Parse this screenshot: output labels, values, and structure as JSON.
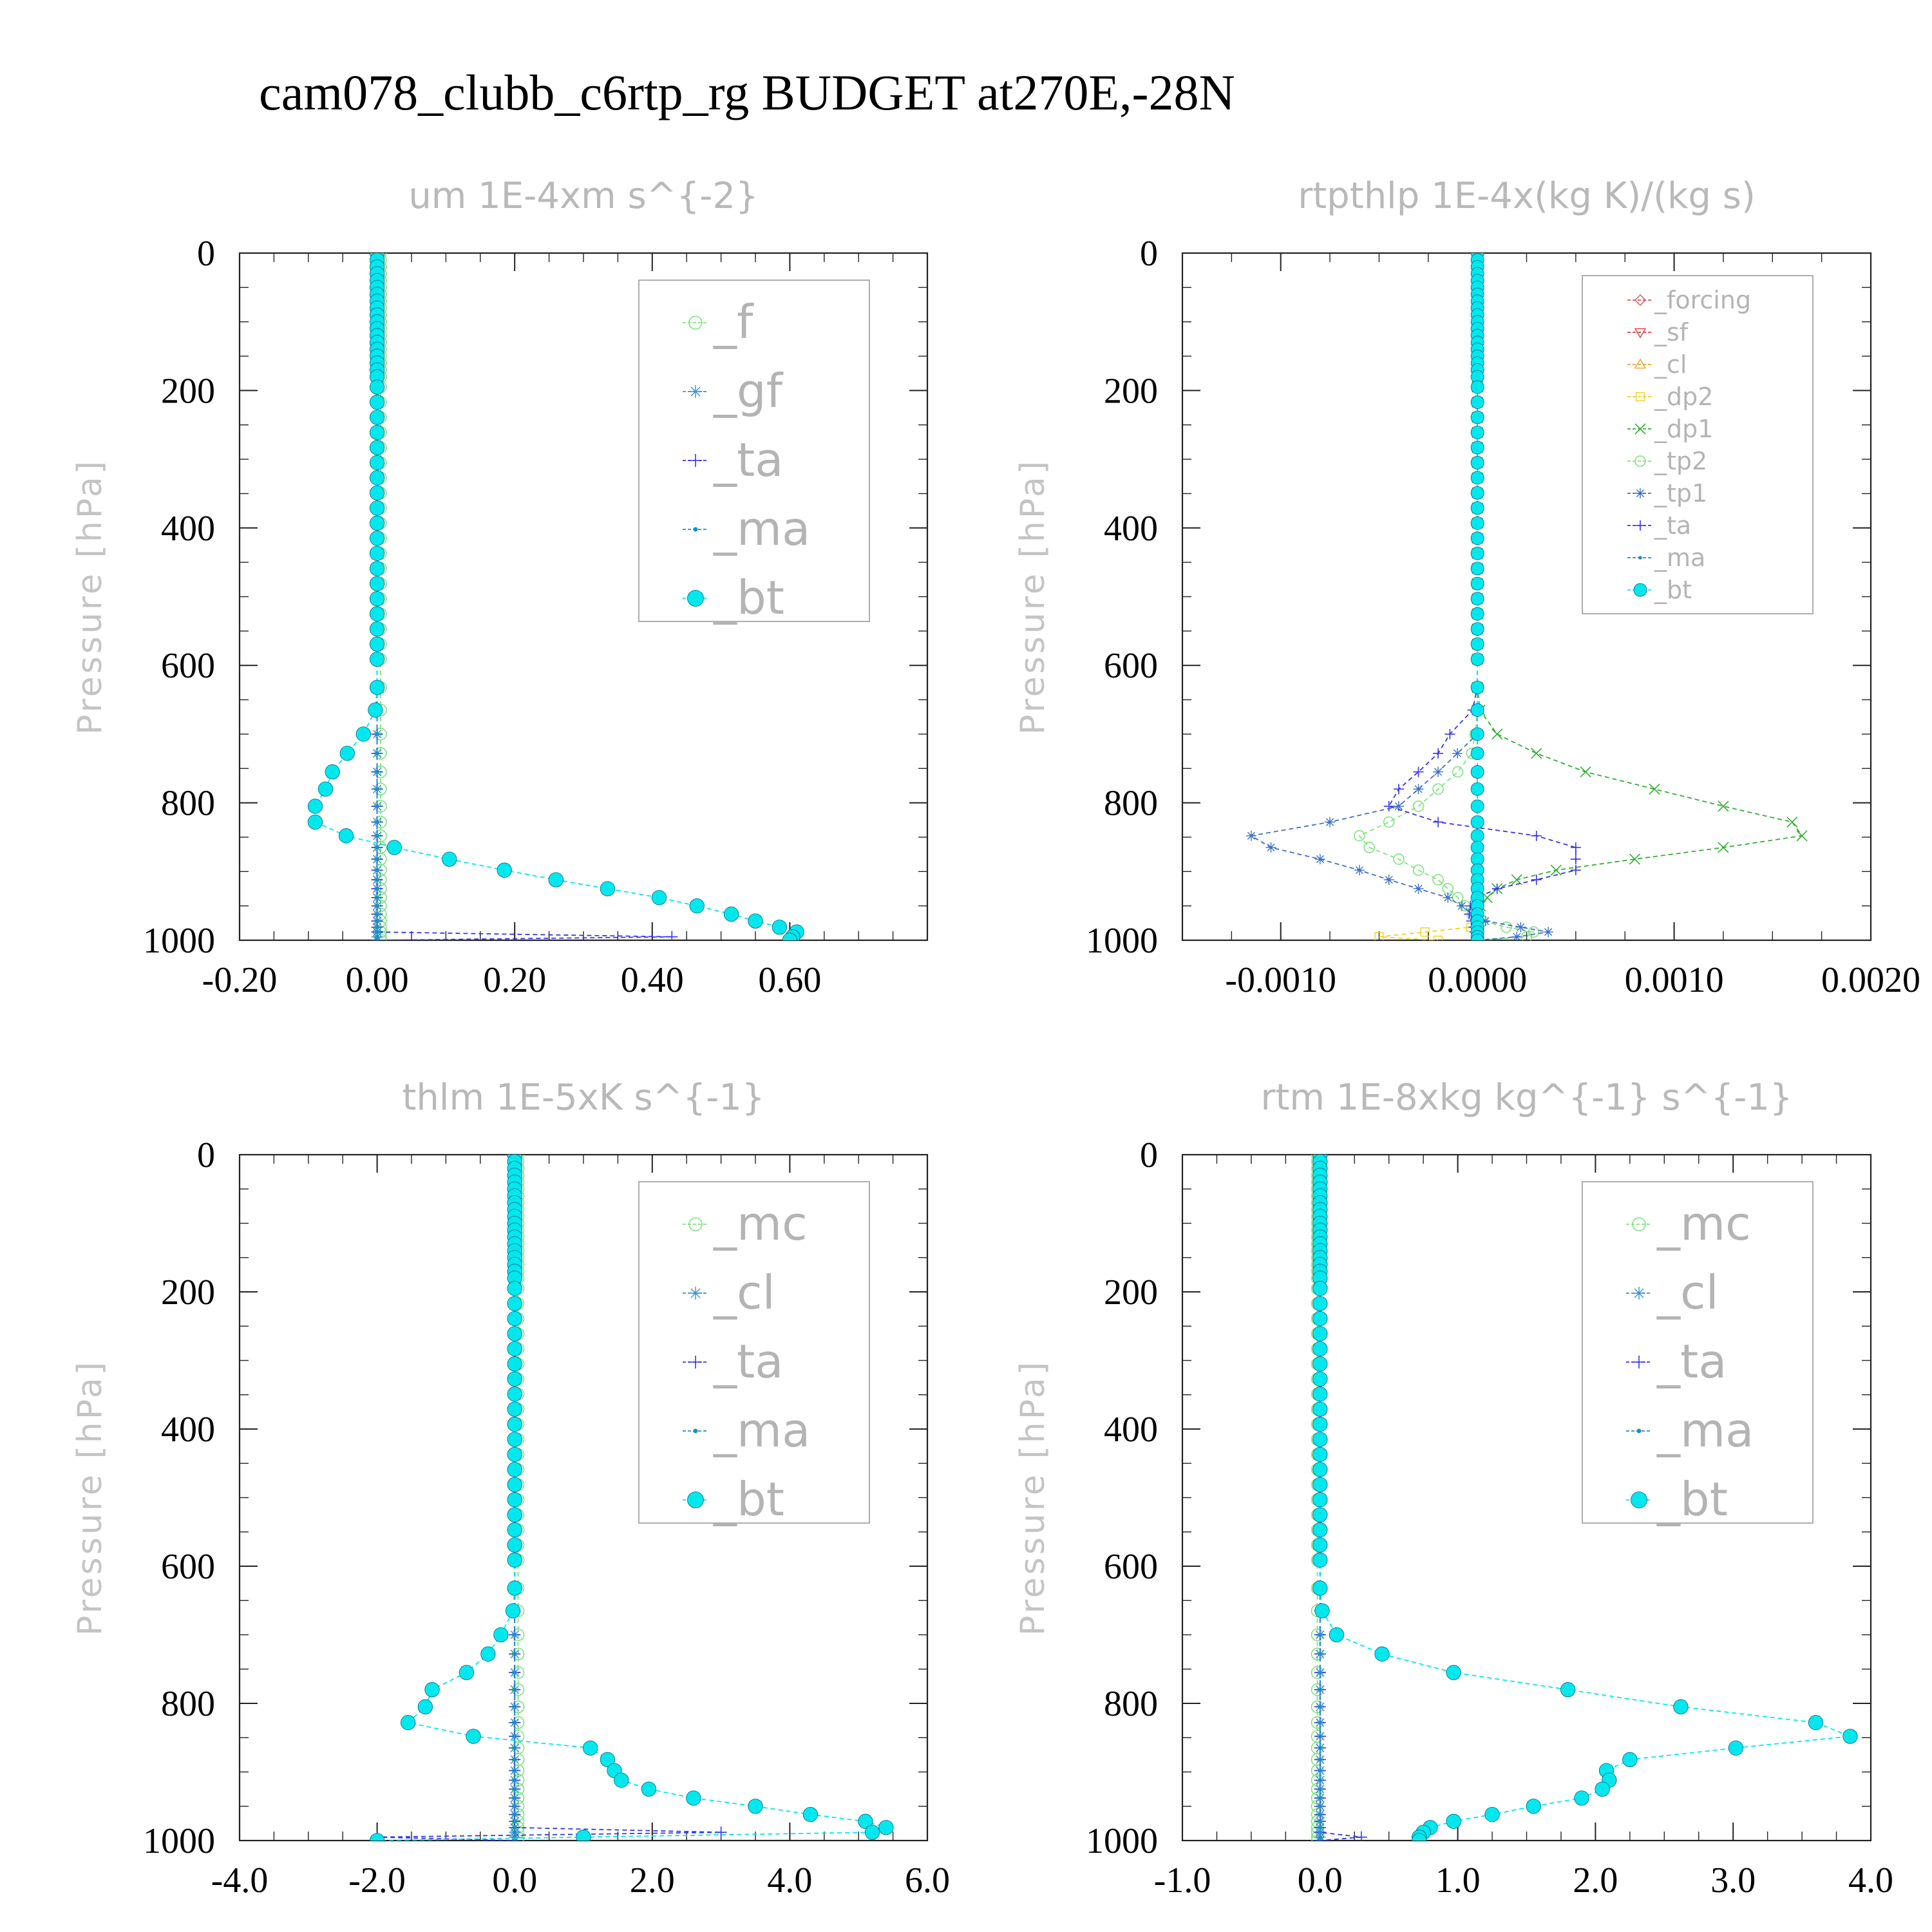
{
  "title": "cam078_clubb_c6rtp_rg  BUDGET at270E,-28N",
  "colors": {
    "f": "#7fe37f",
    "gf": "#3a8fd8",
    "ta": "#3535ee",
    "ma": "#1a8fc8",
    "bt": "#00e8ee",
    "forcing": "#e05050",
    "sf": "#e04040",
    "cl_orange": "#f0a030",
    "dp2": "#f0d020",
    "dp1": "#30b030",
    "tp2": "#7fe37f",
    "tp1": "#3a70c8",
    "mc": "#7fe37f",
    "cl_blue": "#3a8fd8"
  },
  "chart_data": [
    {
      "type": "line",
      "title": "um  1E-4xm s^{-2}",
      "ylabel": "Pressure [hPa]",
      "xlim": [
        -0.2,
        0.8
      ],
      "ylim": [
        1000,
        0
      ],
      "xticks": [
        -0.2,
        0.0,
        0.2,
        0.4,
        0.6
      ],
      "xtick_labels": [
        "-0.20",
        "0.00",
        "0.20",
        "0.40",
        "0.60"
      ],
      "yticks": [
        0,
        200,
        400,
        600,
        800,
        1000
      ],
      "ytick_labels": [
        "0",
        "200",
        "400",
        "600",
        "800",
        "1000"
      ],
      "legend": {
        "position": "top-right",
        "size": "large"
      },
      "series": [
        {
          "name": "_f",
          "color": "#7fe37f",
          "marker": "circle",
          "profile": [
            [
              0,
              0.005
            ],
            [
              1000,
              0.005
            ]
          ]
        },
        {
          "name": "_gf",
          "color": "#3a8fd8",
          "marker": "star",
          "profile": [
            [
              0,
              0.0
            ],
            [
              1000,
              0.0
            ]
          ]
        },
        {
          "name": "_ta",
          "color": "#3535ee",
          "marker": "plus",
          "profile": [
            [
              0,
              0.0
            ],
            [
              990,
              0.0
            ],
            [
              993,
              0.6
            ],
            [
              1000,
              0.0
            ]
          ]
        },
        {
          "name": "_ma",
          "color": "#1a8fc8",
          "marker": "dot",
          "profile": [
            [
              0,
              0.0
            ],
            [
              1000,
              0.0
            ]
          ]
        },
        {
          "name": "_bt",
          "color": "#00e8ee",
          "marker": "filled-circle",
          "profile": [
            [
              0,
              0.0
            ],
            [
              660,
              0.0
            ],
            [
              700,
              -0.02
            ],
            [
              730,
              -0.045
            ],
            [
              755,
              -0.065
            ],
            [
              780,
              -0.075
            ],
            [
              805,
              -0.09
            ],
            [
              828,
              -0.09
            ],
            [
              848,
              -0.045
            ],
            [
              865,
              0.025
            ],
            [
              882,
              0.105
            ],
            [
              898,
              0.185
            ],
            [
              912,
              0.26
            ],
            [
              925,
              0.335
            ],
            [
              938,
              0.41
            ],
            [
              950,
              0.465
            ],
            [
              962,
              0.515
            ],
            [
              972,
              0.55
            ],
            [
              981,
              0.585
            ],
            [
              988,
              0.61
            ],
            [
              1000,
              0.6
            ]
          ]
        }
      ]
    },
    {
      "type": "line",
      "title": "rtpthlp  1E-4x(kg K)/(kg s)",
      "ylabel": "Pressure [hPa]",
      "xlim": [
        -0.0015,
        0.002
      ],
      "ylim": [
        1000,
        0
      ],
      "xticks": [
        -0.001,
        0.0,
        0.001,
        0.002
      ],
      "xtick_labels": [
        "-0.0010",
        "0.0000",
        "0.0010",
        "0.0020"
      ],
      "yticks": [
        0,
        200,
        400,
        600,
        800,
        1000
      ],
      "ytick_labels": [
        "0",
        "200",
        "400",
        "600",
        "800",
        "1000"
      ],
      "legend": {
        "position": "top-right",
        "size": "small"
      },
      "series": [
        {
          "name": "_forcing",
          "color": "#e05050",
          "marker": "diamond",
          "profile": [
            [
              0,
              0.0
            ],
            [
              1000,
              0.0
            ]
          ]
        },
        {
          "name": "_sf",
          "color": "#e04040",
          "marker": "triangle-down",
          "profile": [
            [
              0,
              0.0
            ],
            [
              1000,
              0.0
            ]
          ]
        },
        {
          "name": "_cl",
          "color": "#f0a030",
          "marker": "triangle-up",
          "profile": [
            [
              0,
              0.0
            ],
            [
              1000,
              0.0
            ]
          ]
        },
        {
          "name": "_dp2",
          "color": "#f0d020",
          "marker": "square",
          "profile": [
            [
              0,
              0.0
            ],
            [
              980,
              0.0
            ],
            [
              995,
              -0.0005
            ],
            [
              1000,
              -0.0002
            ]
          ]
        },
        {
          "name": "_dp1",
          "color": "#30b030",
          "marker": "x",
          "profile": [
            [
              0,
              0.0
            ],
            [
              660,
              0.0
            ],
            [
              700,
              0.0001
            ],
            [
              728,
              0.0003
            ],
            [
              755,
              0.00055
            ],
            [
              780,
              0.0009
            ],
            [
              805,
              0.00125
            ],
            [
              828,
              0.0016
            ],
            [
              848,
              0.00165
            ],
            [
              865,
              0.00125
            ],
            [
              882,
              0.0008
            ],
            [
              898,
              0.0004
            ],
            [
              912,
              0.0002
            ],
            [
              925,
              0.0001
            ],
            [
              938,
              5e-05
            ],
            [
              955,
              0.0
            ],
            [
              1000,
              0.0
            ]
          ]
        },
        {
          "name": "_tp2",
          "color": "#7fe37f",
          "marker": "circle",
          "profile": [
            [
              0,
              0.0
            ],
            [
              680,
              0.0
            ],
            [
              730,
              -3e-05
            ],
            [
              755,
              -0.0001
            ],
            [
              780,
              -0.0002
            ],
            [
              805,
              -0.0003
            ],
            [
              828,
              -0.00045
            ],
            [
              848,
              -0.0006
            ],
            [
              865,
              -0.00055
            ],
            [
              882,
              -0.0004
            ],
            [
              898,
              -0.0003
            ],
            [
              912,
              -0.0002
            ],
            [
              925,
              -0.00015
            ],
            [
              938,
              -0.0001
            ],
            [
              955,
              -5e-05
            ],
            [
              970,
              0.0
            ],
            [
              985,
              0.0002
            ],
            [
              992,
              0.0004
            ],
            [
              1000,
              0.0
            ]
          ]
        },
        {
          "name": "_tp1",
          "color": "#3a70c8",
          "marker": "star",
          "profile": [
            [
              0,
              0.0
            ],
            [
              700,
              0.0
            ],
            [
              755,
              -0.0002
            ],
            [
              805,
              -0.0004
            ],
            [
              828,
              -0.00075
            ],
            [
              848,
              -0.00115
            ],
            [
              865,
              -0.00105
            ],
            [
              882,
              -0.0008
            ],
            [
              898,
              -0.0006
            ],
            [
              912,
              -0.00045
            ],
            [
              925,
              -0.0003
            ],
            [
              938,
              -0.00015
            ],
            [
              955,
              -5e-05
            ],
            [
              970,
              0.0
            ],
            [
              990,
              0.0004
            ],
            [
              1000,
              0.0
            ]
          ]
        },
        {
          "name": "_ta",
          "color": "#3535ee",
          "marker": "plus",
          "profile": [
            [
              0,
              0.0
            ],
            [
              660,
              0.0
            ],
            [
              680,
              -0.0001
            ],
            [
              705,
              -0.00015
            ],
            [
              728,
              -0.0002
            ],
            [
              755,
              -0.0003
            ],
            [
              780,
              -0.0004
            ],
            [
              805,
              -0.00045
            ],
            [
              828,
              -0.0002
            ],
            [
              848,
              0.0003
            ],
            [
              865,
              0.0005
            ],
            [
              882,
              0.0005
            ],
            [
              898,
              0.0005
            ],
            [
              912,
              0.0003
            ],
            [
              925,
              0.0001
            ],
            [
              938,
              0.0
            ],
            [
              955,
              -5e-05
            ],
            [
              1000,
              0.0
            ]
          ]
        },
        {
          "name": "_ma",
          "color": "#1a8fc8",
          "marker": "dot",
          "profile": [
            [
              0,
              0.0
            ],
            [
              1000,
              0.0
            ]
          ]
        },
        {
          "name": "_bt",
          "color": "#00e8ee",
          "marker": "filled-circle",
          "profile": [
            [
              0,
              0.0
            ],
            [
              1000,
              0.0
            ]
          ]
        }
      ]
    },
    {
      "type": "line",
      "title": "thlm  1E-5xK s^{-1}",
      "ylabel": "Pressure [hPa]",
      "xlim": [
        -4.0,
        6.0
      ],
      "ylim": [
        1000,
        0
      ],
      "xticks": [
        -4.0,
        -2.0,
        0.0,
        2.0,
        4.0,
        6.0
      ],
      "xtick_labels": [
        "-4.0",
        "-2.0",
        "0.0",
        "2.0",
        "4.0",
        "6.0"
      ],
      "yticks": [
        0,
        200,
        400,
        600,
        800,
        1000
      ],
      "ytick_labels": [
        "0",
        "200",
        "400",
        "600",
        "800",
        "1000"
      ],
      "legend": {
        "position": "top-right",
        "size": "large"
      },
      "series": [
        {
          "name": "_mc",
          "color": "#7fe37f",
          "marker": "circle",
          "profile": [
            [
              0,
              0.05
            ],
            [
              1000,
              0.05
            ]
          ]
        },
        {
          "name": "_cl",
          "color": "#3a8fd8",
          "marker": "star",
          "profile": [
            [
              0,
              0.0
            ],
            [
              1000,
              0.0
            ]
          ]
        },
        {
          "name": "_ta",
          "color": "#3535ee",
          "marker": "plus",
          "profile": [
            [
              0,
              0.0
            ],
            [
              985,
              0.0
            ],
            [
              990,
              5.0
            ],
            [
              995,
              -2.0
            ],
            [
              1000,
              0.0
            ]
          ]
        },
        {
          "name": "_ma",
          "color": "#1a8fc8",
          "marker": "dot",
          "profile": [
            [
              0,
              0.0
            ],
            [
              1000,
              0.0
            ]
          ]
        },
        {
          "name": "_bt",
          "color": "#00e8ee",
          "marker": "filled-circle",
          "profile": [
            [
              0,
              0.0
            ],
            [
              660,
              0.0
            ],
            [
              700,
              -0.2
            ],
            [
              730,
              -0.4
            ],
            [
              755,
              -0.7
            ],
            [
              780,
              -1.2
            ],
            [
              805,
              -1.3
            ],
            [
              828,
              -1.55
            ],
            [
              848,
              -0.6
            ],
            [
              865,
              1.1
            ],
            [
              882,
              1.35
            ],
            [
              898,
              1.45
            ],
            [
              912,
              1.55
            ],
            [
              925,
              1.95
            ],
            [
              938,
              2.6
            ],
            [
              950,
              3.5
            ],
            [
              962,
              4.3
            ],
            [
              972,
              5.1
            ],
            [
              981,
              5.4
            ],
            [
              988,
              5.2
            ],
            [
              1000,
              -2.0
            ]
          ]
        }
      ]
    },
    {
      "type": "line",
      "title": "rtm  1E-8xkg kg^{-1} s^{-1}",
      "ylabel": "Pressure [hPa]",
      "xlim": [
        -1.0,
        4.0
      ],
      "ylim": [
        1000,
        0
      ],
      "xticks": [
        -1.0,
        0.0,
        1.0,
        2.0,
        3.0,
        4.0
      ],
      "xtick_labels": [
        "-1.0",
        "0.0",
        "1.0",
        "2.0",
        "3.0",
        "4.0"
      ],
      "yticks": [
        0,
        200,
        400,
        600,
        800,
        1000
      ],
      "ytick_labels": [
        "0",
        "200",
        "400",
        "600",
        "800",
        "1000"
      ],
      "legend": {
        "position": "top-right",
        "size": "large"
      },
      "series": [
        {
          "name": "_mc",
          "color": "#7fe37f",
          "marker": "circle",
          "profile": [
            [
              0,
              -0.02
            ],
            [
              1000,
              -0.02
            ]
          ]
        },
        {
          "name": "_cl",
          "color": "#3a8fd8",
          "marker": "star",
          "profile": [
            [
              0,
              0.0
            ],
            [
              1000,
              0.0
            ]
          ]
        },
        {
          "name": "_ta",
          "color": "#3535ee",
          "marker": "plus",
          "profile": [
            [
              0,
              0.0
            ],
            [
              990,
              0.0
            ],
            [
              995,
              0.3
            ],
            [
              1000,
              0.0
            ]
          ]
        },
        {
          "name": "_ma",
          "color": "#1a8fc8",
          "marker": "dot",
          "profile": [
            [
              0,
              0.0
            ],
            [
              1000,
              0.0
            ]
          ]
        },
        {
          "name": "_bt",
          "color": "#00e8ee",
          "marker": "filled-circle",
          "profile": [
            [
              0,
              0.0
            ],
            [
              660,
              0.0
            ],
            [
              700,
              0.12
            ],
            [
              728,
              0.45
            ],
            [
              755,
              0.97
            ],
            [
              780,
              1.8
            ],
            [
              805,
              2.62
            ],
            [
              828,
              3.6
            ],
            [
              848,
              3.85
            ],
            [
              865,
              3.02
            ],
            [
              882,
              2.25
            ],
            [
              898,
              2.08
            ],
            [
              912,
              2.1
            ],
            [
              925,
              2.05
            ],
            [
              938,
              1.9
            ],
            [
              950,
              1.55
            ],
            [
              962,
              1.25
            ],
            [
              972,
              0.97
            ],
            [
              981,
              0.8
            ],
            [
              988,
              0.75
            ],
            [
              995,
              0.72
            ],
            [
              1000,
              0.72
            ]
          ]
        }
      ]
    }
  ]
}
